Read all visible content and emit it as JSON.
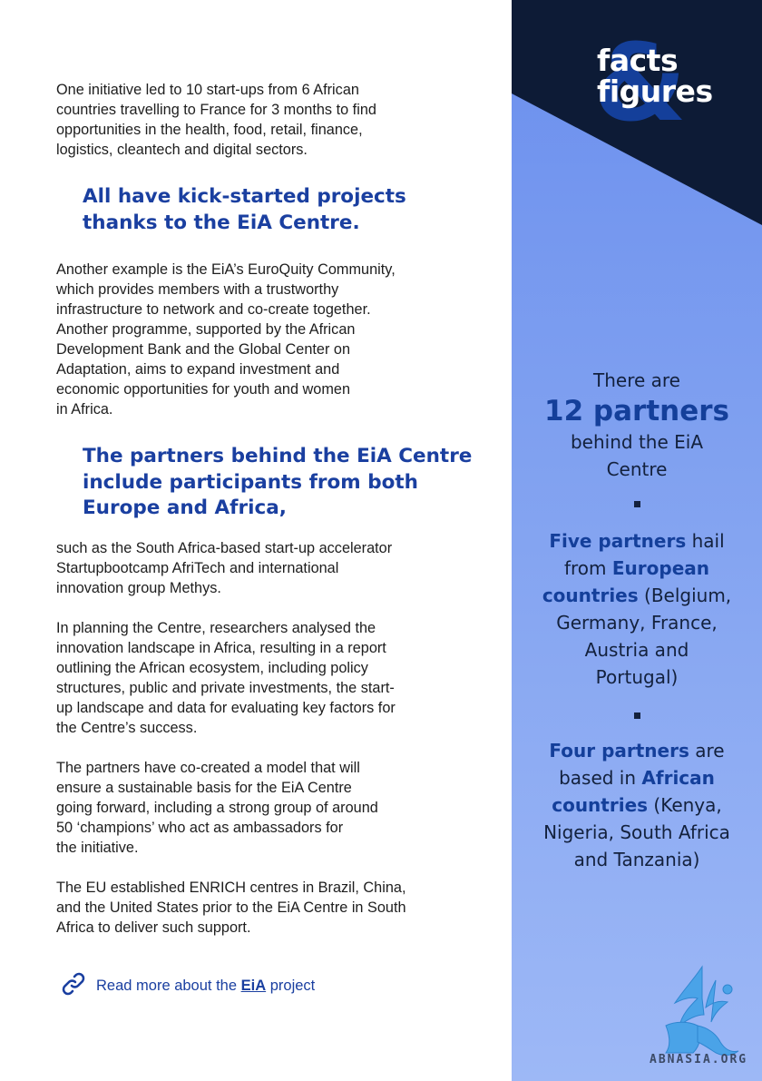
{
  "body": {
    "p1": "One initiative led to 10 start-ups from 6 African\ncountries travelling to France for 3 months to find\nopportunities in the health, food, retail, finance,\nlogistics, cleantech and digital sectors.",
    "h1": "All have kick-started projects\nthanks to the EiA Centre.",
    "p2": "Another example is the EiA’s EuroQuity Community,\nwhich provides members with a trustworthy\ninfrastructure to network and co-create together.\nAnother programme, supported by the African\nDevelopment Bank and the Global Center on\nAdaptation, aims to expand investment and\neconomic opportunities for youth and women\nin Africa.",
    "h2": "The partners behind the EiA Centre\ninclude participants from both\nEurope and Africa,",
    "p3": "such as the South Africa-based start-up accelerator\nStartupbootcamp AfriTech and international\ninnovation group Methys.",
    "p4": "In planning the Centre, researchers analysed the\ninnovation landscape in Africa, resulting in a report\noutlining the African ecosystem, including policy\nstructures, public and private investments, the start-\nup landscape and data for evaluating key factors for\nthe Centre’s success.",
    "p5": "The partners have co-created a model that will\nensure a sustainable basis for the EiA Centre\ngoing forward, including a strong group of around\n50 ‘champions’ who act as ambassadors for\nthe initiative.",
    "p6": "The EU established ENRICH centres in Brazil, China,\nand the United States prior to the EiA Centre in South\nAfrica to deliver such support."
  },
  "read_more": {
    "prefix": "Read more about the",
    "link": "EiA",
    "suffix": "project",
    "icon": "link-icon"
  },
  "sidebar": {
    "header_line1": "facts",
    "header_line2": "figures",
    "header_symbol": "&",
    "fact1_pre": "There are",
    "fact1_big": "12 partners",
    "fact1_post": "behind the EiA\nCentre",
    "fact2_strong1": "Five partners",
    "fact2_t1": " hail\nfrom ",
    "fact2_strong2": "European\ncountries",
    "fact2_t2": " (Belgium,\nGermany, France,\nAustria and\nPortugal)",
    "fact3_strong1": "Four partners",
    "fact3_t1": " are\nbased in ",
    "fact3_strong2": "African\ncountries",
    "fact3_t2": " (Kenya,\nNigeria, South Africa\nand Tanzania)",
    "watermark": "ABNASIA.ORG"
  },
  "colors": {
    "heading_blue": "#1a3fa0",
    "navy": "#0d1b36",
    "sidebar_top": "#6b8fee",
    "sidebar_bottom": "#9db8f6"
  }
}
